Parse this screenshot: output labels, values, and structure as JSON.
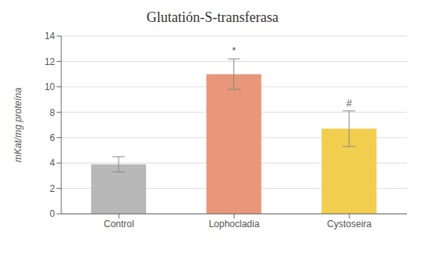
{
  "chart_data": {
    "type": "bar",
    "title": "Glutatión-S-transferasa",
    "categories": [
      "Control",
      "Lophocladia",
      "Cystoseira"
    ],
    "values": [
      3.9,
      11.0,
      6.7
    ],
    "errors": [
      0.6,
      1.2,
      1.4
    ],
    "colors": [
      "#b8b8b8",
      "#e8977a",
      "#f2ce4e"
    ],
    "ylabel": "mKat/mg proteína",
    "ylim": [
      0,
      14
    ],
    "yticks": [
      0,
      2,
      4,
      6,
      8,
      10,
      12,
      14
    ],
    "grid": true,
    "annotations": [
      {
        "text": "*",
        "category": "Lophocladia"
      },
      {
        "text": "#",
        "category": "Cystoseira"
      }
    ]
  }
}
